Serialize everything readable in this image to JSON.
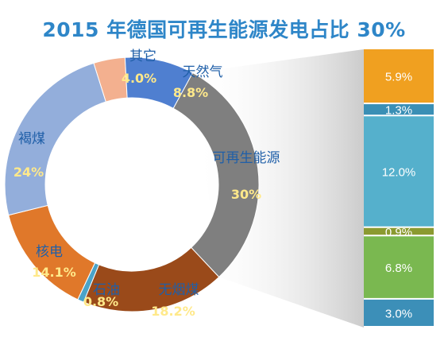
{
  "title": "2015 年德国可再生能源发电占比 30%",
  "chart_data": [
    {
      "type": "pie",
      "subtype": "donut",
      "categories": [
        "其它",
        "天然气",
        "可再生能源",
        "无烟煤",
        "石油",
        "核电",
        "褐煤"
      ],
      "values": [
        4.0,
        8.8,
        30,
        18.2,
        0.8,
        14.1,
        24
      ],
      "value_labels": [
        "4.0%",
        "8.8%",
        "30%",
        "18.2%",
        "0.8%",
        "14.1%",
        "24%"
      ],
      "colors": [
        "#f3b08f",
        "#4f7fd0",
        "#7f7f7f",
        "#9a4a1a",
        "#4aa3c8",
        "#e0782a",
        "#93aedb"
      ]
    },
    {
      "type": "bar",
      "subtype": "stacked-100",
      "categories": [
        "",
        "",
        "",
        "",
        "",
        ""
      ],
      "values": [
        5.9,
        1.3,
        12.0,
        0.9,
        6.8,
        3.0
      ],
      "value_labels": [
        "5.9%",
        "1.3%",
        "12.0%",
        "0.9%",
        "6.8%",
        "3.0%"
      ],
      "colors": [
        "#f0a020",
        "#3a8fb5",
        "#55b0cc",
        "#8b9a30",
        "#7ab850",
        "#3c8fb8"
      ]
    }
  ]
}
